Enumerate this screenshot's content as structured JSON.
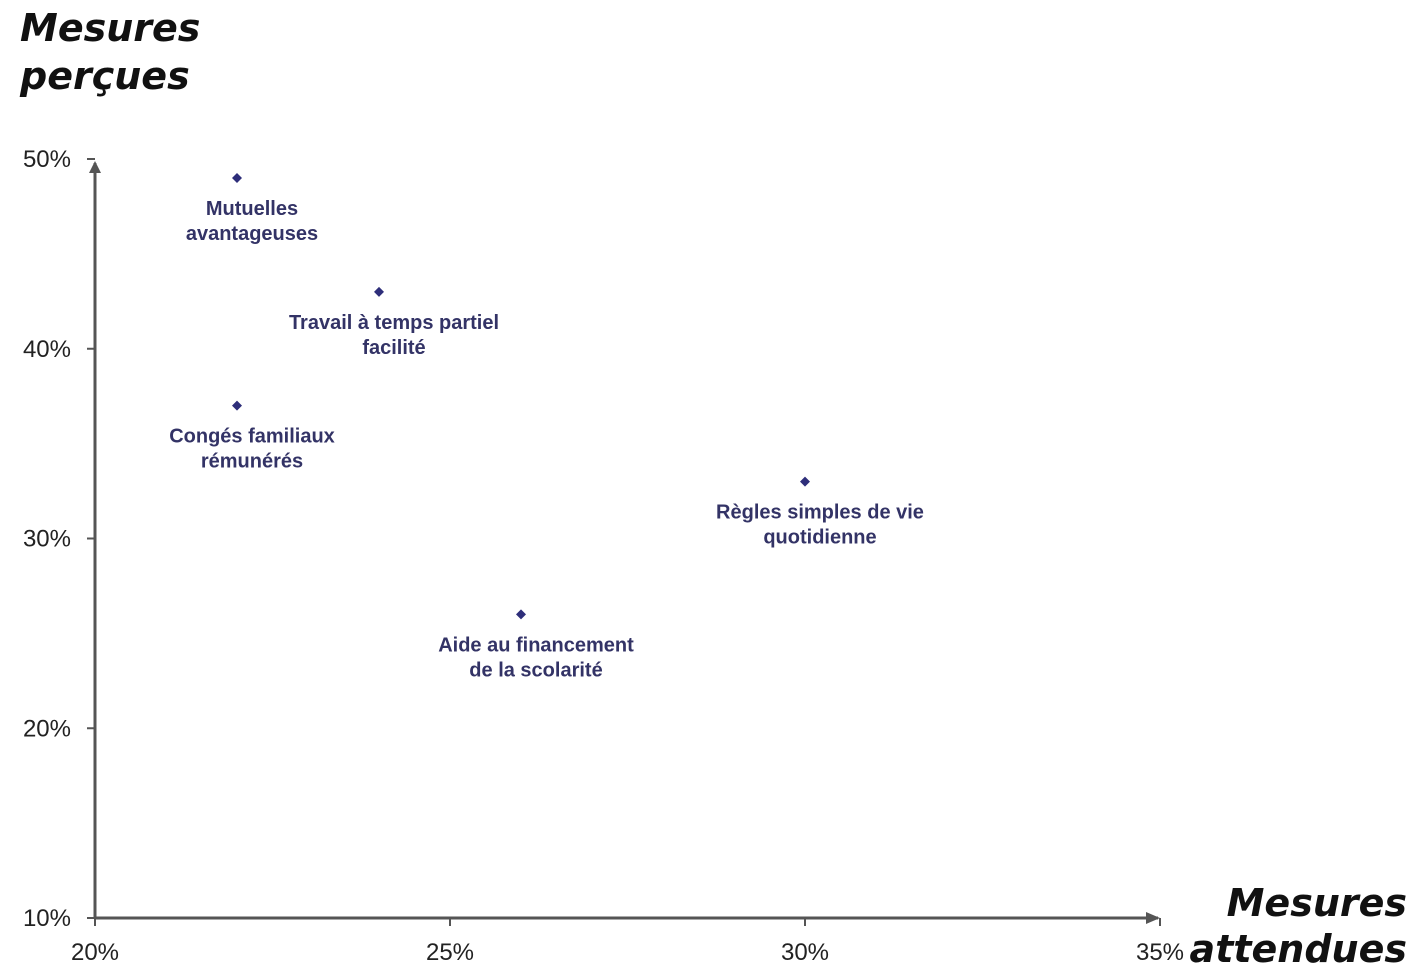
{
  "chart_data": {
    "type": "scatter",
    "ylabel": "Mesures\nperçues",
    "xlabel": "Mesures\nattendues",
    "xlim": [
      20,
      35
    ],
    "ylim": [
      10,
      50
    ],
    "x_ticks": [
      "20%",
      "25%",
      "30%",
      "35%"
    ],
    "y_ticks": [
      "10%",
      "20%",
      "30%",
      "40%",
      "50%"
    ],
    "x_tick_values": [
      20,
      25,
      30,
      35
    ],
    "y_tick_values": [
      10,
      20,
      30,
      40,
      50
    ],
    "grid": false,
    "marker_color": "#2e2e7a",
    "points": [
      {
        "label": "Mutuelles\navantageuses",
        "x": 22,
        "y": 49
      },
      {
        "label": "Travail à temps partiel\nfacilité",
        "x": 24,
        "y": 43
      },
      {
        "label": "Congés familiaux\nrémunérés",
        "x": 22,
        "y": 37
      },
      {
        "label": "Règles simples de vie\nquotidienne",
        "x": 30,
        "y": 33
      },
      {
        "label": "Aide au financement\nde la scolarité",
        "x": 26,
        "y": 26
      }
    ]
  }
}
